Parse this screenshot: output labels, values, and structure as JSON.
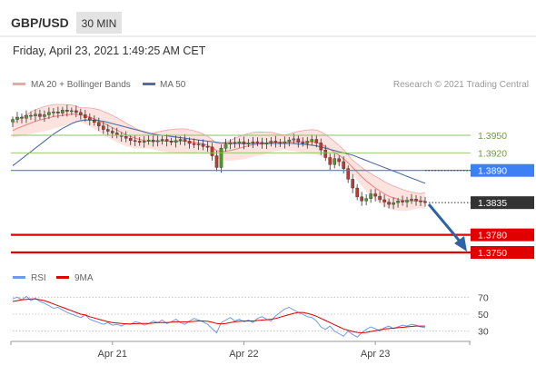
{
  "header": {
    "symbol": "GBP/USD",
    "timeframe": "30 MIN",
    "datetime": "Friday, April 23, 2021 1:49:25 AM CET",
    "credit": "Research © 2021 Trading Central"
  },
  "colors": {
    "bollinger": "#f4a3a3",
    "bollinger_fill": "#fde3df",
    "ma20": "#f08080",
    "ma50": "#4f6fa6",
    "support": "#e00000",
    "pivot": "#3d7ff5",
    "resistance": "#8cc063",
    "current": "#333333",
    "rsi": "#6f9be8",
    "rsi_ma": "#e00000",
    "arrow": "#2d62a8",
    "candle_up": "#4c9a2a",
    "candle_down": "#c0392b"
  },
  "chart_data": [
    {
      "type": "candlestick",
      "title": "",
      "legend": [
        {
          "name": "MA 20 + Bollinger Bands",
          "color": "#f08080"
        },
        {
          "name": "MA 50",
          "color": "#4f6fa6"
        }
      ],
      "x_labels": [
        "Apr 21",
        "Apr 22",
        "Apr 23"
      ],
      "x_label_positions": [
        22,
        51,
        80
      ],
      "ylim": [
        1.3735,
        1.401
      ],
      "bars": 92,
      "levels": [
        {
          "value": 1.395,
          "label": "1.3950",
          "role": "resistance"
        },
        {
          "value": 1.392,
          "label": "1.3920",
          "role": "resistance"
        },
        {
          "value": 1.389,
          "label": "1.3890",
          "role": "pivot"
        },
        {
          "value": 1.3835,
          "label": "1.3835",
          "role": "current"
        },
        {
          "value": 1.378,
          "label": "1.3780",
          "role": "support"
        },
        {
          "value": 1.375,
          "label": "1.3750",
          "role": "support"
        }
      ],
      "close": [
        1.3977,
        1.3981,
        1.3979,
        1.3984,
        1.3983,
        1.3986,
        1.3982,
        1.3985,
        1.3989,
        1.399,
        1.3988,
        1.3993,
        1.3991,
        1.3992,
        1.3989,
        1.3985,
        1.398,
        1.3976,
        1.3972,
        1.3966,
        1.396,
        1.3957,
        1.3954,
        1.395,
        1.3948,
        1.3945,
        1.3941,
        1.394,
        1.3938,
        1.394,
        1.3942,
        1.3939,
        1.3941,
        1.3943,
        1.394,
        1.3938,
        1.3941,
        1.3943,
        1.394,
        1.3936,
        1.3934,
        1.3935,
        1.3931,
        1.393,
        1.3915,
        1.3895,
        1.3928,
        1.3935,
        1.3938,
        1.3936,
        1.3939,
        1.3935,
        1.3937,
        1.3939,
        1.3938,
        1.3935,
        1.3937,
        1.394,
        1.3938,
        1.3936,
        1.3939,
        1.3942,
        1.3944,
        1.3938,
        1.3936,
        1.394,
        1.3943,
        1.3937,
        1.3925,
        1.3912,
        1.39,
        1.391,
        1.3905,
        1.3893,
        1.3875,
        1.386,
        1.3845,
        1.3838,
        1.3842,
        1.385,
        1.3846,
        1.384,
        1.3836,
        1.3832,
        1.3835,
        1.3838,
        1.3836,
        1.3839,
        1.3841,
        1.3838,
        1.3837,
        1.3835
      ],
      "ma20": [
        1.3958,
        1.3962,
        1.3965,
        1.3968,
        1.3971,
        1.3974,
        1.3976,
        1.3978,
        1.398,
        1.3982,
        1.3983,
        1.3984,
        1.3985,
        1.3986,
        1.3986,
        1.3985,
        1.3983,
        1.3981,
        1.3978,
        1.3975,
        1.3971,
        1.3967,
        1.3963,
        1.3959,
        1.3955,
        1.3951,
        1.3948,
        1.3945,
        1.3943,
        1.3941,
        1.394,
        1.394,
        1.394,
        1.394,
        1.394,
        1.394,
        1.394,
        1.394,
        1.394,
        1.3939,
        1.3938,
        1.3937,
        1.3935,
        1.3933,
        1.3929,
        1.3924,
        1.3922,
        1.3923,
        1.3924,
        1.3926,
        1.3928,
        1.393,
        1.3932,
        1.3934,
        1.3935,
        1.3936,
        1.3937,
        1.3938,
        1.3938,
        1.3938,
        1.3938,
        1.3938,
        1.3939,
        1.3939,
        1.3939,
        1.3939,
        1.3939,
        1.3938,
        1.3935,
        1.3931,
        1.3926,
        1.3921,
        1.3916,
        1.391,
        1.3903,
        1.3895,
        1.3887,
        1.3879,
        1.3872,
        1.3866,
        1.386,
        1.3855,
        1.385,
        1.3846,
        1.3843,
        1.3841,
        1.3839,
        1.3838,
        1.3838,
        1.3838,
        1.3838,
        1.3838
      ],
      "ma50": [
        1.3898,
        1.3904,
        1.391,
        1.3916,
        1.3922,
        1.3928,
        1.3934,
        1.394,
        1.3946,
        1.3952,
        1.3957,
        1.3962,
        1.3966,
        1.397,
        1.3973,
        1.3975,
        1.3976,
        1.3976,
        1.3976,
        1.3975,
        1.3974,
        1.3972,
        1.397,
        1.3968,
        1.3966,
        1.3964,
        1.3962,
        1.396,
        1.3958,
        1.3956,
        1.3954,
        1.3952,
        1.3951,
        1.395,
        1.3949,
        1.3948,
        1.3947,
        1.3946,
        1.3945,
        1.3944,
        1.3943,
        1.3942,
        1.3941,
        1.394,
        1.3939,
        1.3938,
        1.3937,
        1.3937,
        1.3936,
        1.3936,
        1.3936,
        1.3936,
        1.3936,
        1.3936,
        1.3936,
        1.3936,
        1.3936,
        1.3936,
        1.3936,
        1.3936,
        1.3936,
        1.3936,
        1.3936,
        1.3935,
        1.3935,
        1.3934,
        1.3933,
        1.3932,
        1.393,
        1.3928,
        1.3926,
        1.3924,
        1.3922,
        1.392,
        1.3918,
        1.3916,
        1.3913,
        1.391,
        1.3907,
        1.3904,
        1.3901,
        1.3898,
        1.3895,
        1.3892,
        1.3889,
        1.3886,
        1.3883,
        1.388,
        1.3877,
        1.3874,
        1.3871,
        1.3868
      ]
    },
    {
      "type": "line",
      "title": "",
      "legend": [
        {
          "name": "RSI",
          "color": "#6f9be8"
        },
        {
          "name": "9MA",
          "color": "#e00000"
        }
      ],
      "ylim": [
        20,
        80
      ],
      "y_ticks": [
        70,
        50,
        30
      ],
      "rsi": [
        68,
        70,
        67,
        71,
        66,
        69,
        65,
        63,
        60,
        57,
        58,
        55,
        52,
        50,
        48,
        46,
        49,
        44,
        42,
        40,
        38,
        40,
        37,
        38,
        36,
        39,
        38,
        41,
        40,
        37,
        39,
        42,
        40,
        43,
        39,
        41,
        44,
        40,
        38,
        42,
        45,
        43,
        41,
        38,
        33,
        28,
        40,
        43,
        46,
        42,
        44,
        41,
        43,
        40,
        45,
        47,
        44,
        42,
        48,
        52,
        56,
        58,
        55,
        52,
        50,
        47,
        46,
        42,
        35,
        32,
        36,
        30,
        27,
        24,
        30,
        26,
        23,
        28,
        32,
        35,
        33,
        30,
        34,
        36,
        33,
        35,
        37,
        36,
        38,
        37,
        35,
        34
      ],
      "ma": [
        65,
        66,
        67,
        67.5,
        68,
        68,
        67,
        66,
        64,
        62,
        60,
        58,
        56,
        54,
        52,
        50,
        49,
        47,
        45.5,
        44,
        42.5,
        41,
        40,
        39.5,
        39,
        38.5,
        38.5,
        38.8,
        39,
        39,
        39,
        39.5,
        40,
        40,
        40,
        40.5,
        41,
        41,
        41,
        41,
        41.5,
        42,
        42,
        41.5,
        40.5,
        39,
        38.5,
        39,
        40,
        41,
        41.5,
        42,
        42,
        42,
        42.5,
        43,
        43.5,
        44,
        45,
        46.5,
        48,
        49.5,
        51,
        52,
        52,
        51,
        49.5,
        47.5,
        45,
        42.5,
        40,
        37.5,
        35,
        32.5,
        31,
        29.5,
        28.5,
        28,
        28.5,
        29.5,
        30.5,
        31.5,
        32.5,
        33,
        33.5,
        34,
        34.5,
        35,
        35.5,
        36,
        36,
        36
      ]
    }
  ]
}
